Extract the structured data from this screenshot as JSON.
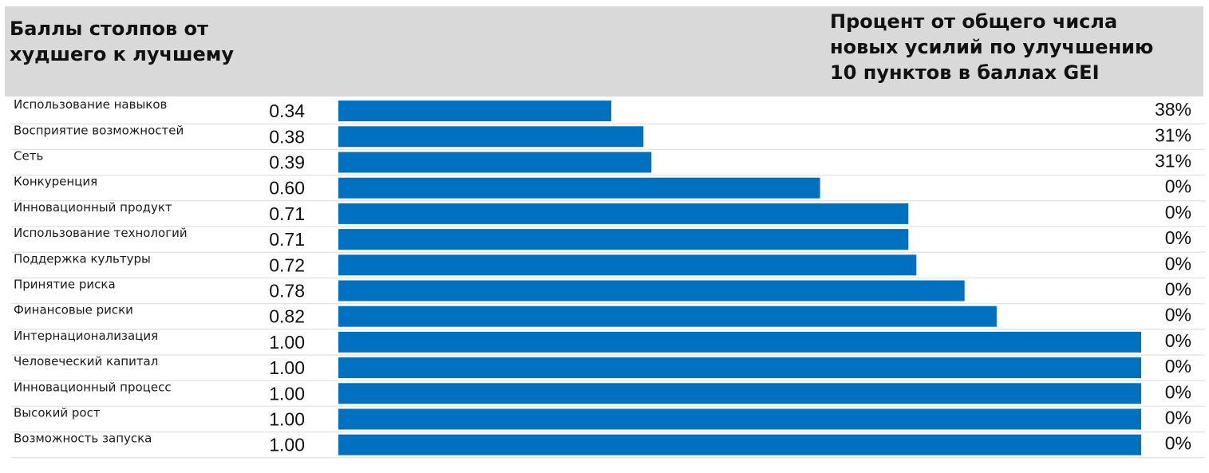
{
  "header": {
    "left_title": "Баллы столпов от\nхудшего к лучшему",
    "right_title": "Процент от общего числа\nновых усилий по улучшению\n10 пунктов в баллах GEI"
  },
  "colors": {
    "bar": "#0070c0",
    "header_band": "#d9d9d9",
    "row_separator": "#e6e6e6"
  },
  "chart_data": {
    "type": "bar",
    "orientation": "horizontal",
    "title": "Баллы столпов от худшего к лучшему",
    "xlim": [
      0,
      1
    ],
    "grid": false,
    "legend": "none",
    "categories": [
      "Использование навыков",
      "Восприятие возможностей",
      "Сеть",
      "Конкуренция",
      "Инновационный продукт",
      "Использование технологий",
      "Поддержка культуры",
      "Принятие риска",
      "Финансовые риски",
      "Интернационализация",
      "Человеческий капитал",
      "Инновационный процесс",
      "Высокий рост",
      "Возможность запуска"
    ],
    "values": [
      0.34,
      0.38,
      0.39,
      0.6,
      0.71,
      0.71,
      0.72,
      0.78,
      0.82,
      1.0,
      1.0,
      1.0,
      1.0,
      1.0
    ],
    "value_labels": [
      "0.34",
      "0.38",
      "0.39",
      "0.60",
      "0.71",
      "0.71",
      "0.72",
      "0.78",
      "0.82",
      "1.00",
      "1.00",
      "1.00",
      "1.00",
      "1.00"
    ],
    "percent_labels": [
      "38%",
      "31%",
      "31%",
      "0%",
      "0%",
      "0%",
      "0%",
      "0%",
      "0%",
      "0%",
      "0%",
      "0%",
      "0%",
      "0%"
    ]
  }
}
